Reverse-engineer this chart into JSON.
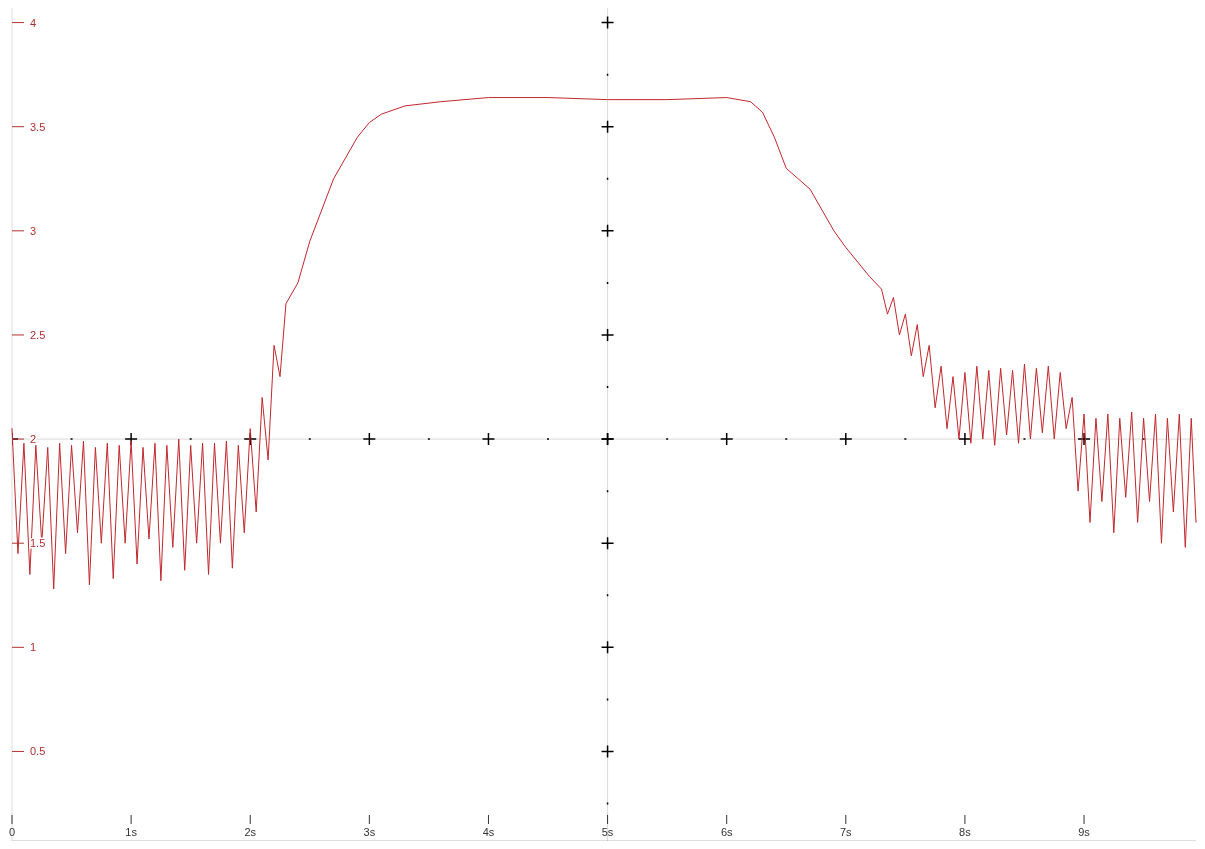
{
  "chart_data": {
    "type": "line",
    "xlim": [
      0,
      9.94
    ],
    "ylim": [
      0.07,
      4.07
    ],
    "xticks": [
      0,
      {
        "value": 1,
        "label": "1s"
      },
      {
        "value": 2,
        "label": "2s"
      },
      {
        "value": 3,
        "label": "3s"
      },
      {
        "value": 4,
        "label": "4s"
      },
      {
        "value": 5,
        "label": "5s"
      },
      {
        "value": 6,
        "label": "6s"
      },
      {
        "value": 7,
        "label": "7s"
      },
      {
        "value": 8,
        "label": "8s"
      },
      {
        "value": 9,
        "label": "9s"
      }
    ],
    "yticks": [
      0.5,
      1,
      1.5,
      2,
      2.5,
      3,
      3.5,
      4
    ],
    "grid": true,
    "series": [
      {
        "color": "#c0282d",
        "x": [
          0,
          0.05,
          0.1,
          0.15,
          0.2,
          0.25,
          0.3,
          0.35,
          0.4,
          0.45,
          0.5,
          0.55,
          0.6,
          0.65,
          0.7,
          0.75,
          0.8,
          0.85,
          0.9,
          0.95,
          1.0,
          1.05,
          1.1,
          1.15,
          1.2,
          1.25,
          1.3,
          1.35,
          1.4,
          1.45,
          1.5,
          1.55,
          1.6,
          1.65,
          1.7,
          1.75,
          1.8,
          1.85,
          1.9,
          1.95,
          2.0,
          2.05,
          2.1,
          2.15,
          2.2,
          2.25,
          2.3,
          2.4,
          2.5,
          2.6,
          2.7,
          2.8,
          2.9,
          3.0,
          3.1,
          3.3,
          3.6,
          4.0,
          4.5,
          5.0,
          5.5,
          6.0,
          6.2,
          6.3,
          6.4,
          6.5,
          6.6,
          6.7,
          6.8,
          6.9,
          7.0,
          7.1,
          7.2,
          7.3,
          7.35,
          7.4,
          7.45,
          7.5,
          7.55,
          7.6,
          7.65,
          7.7,
          7.75,
          7.8,
          7.85,
          7.9,
          7.95,
          8.0,
          8.05,
          8.1,
          8.15,
          8.2,
          8.25,
          8.3,
          8.35,
          8.4,
          8.45,
          8.5,
          8.55,
          8.6,
          8.65,
          8.7,
          8.75,
          8.8,
          8.85,
          8.9,
          8.95,
          9.0,
          9.05,
          9.1,
          9.15,
          9.2,
          9.25,
          9.3,
          9.35,
          9.4,
          9.45,
          9.5,
          9.55,
          9.6,
          9.65,
          9.7,
          9.75,
          9.8,
          9.85,
          9.9,
          9.94
        ],
        "values": [
          2.05,
          1.45,
          1.98,
          1.35,
          1.97,
          1.5,
          1.96,
          1.28,
          1.98,
          1.45,
          1.97,
          1.55,
          1.99,
          1.3,
          1.96,
          1.5,
          1.98,
          1.33,
          1.97,
          1.5,
          1.99,
          1.4,
          1.96,
          1.52,
          1.98,
          1.32,
          1.97,
          1.48,
          2.0,
          1.37,
          1.97,
          1.5,
          1.98,
          1.35,
          1.98,
          1.5,
          1.99,
          1.38,
          1.97,
          1.55,
          2.05,
          1.65,
          2.2,
          1.9,
          2.45,
          2.3,
          2.65,
          2.75,
          2.95,
          3.1,
          3.25,
          3.35,
          3.45,
          3.52,
          3.56,
          3.6,
          3.62,
          3.64,
          3.64,
          3.63,
          3.63,
          3.64,
          3.62,
          3.57,
          3.45,
          3.3,
          3.25,
          3.2,
          3.1,
          3.0,
          2.92,
          2.85,
          2.78,
          2.72,
          2.6,
          2.68,
          2.5,
          2.6,
          2.4,
          2.55,
          2.3,
          2.45,
          2.15,
          2.35,
          2.05,
          2.3,
          2.0,
          2.32,
          1.98,
          2.35,
          2.0,
          2.33,
          1.97,
          2.34,
          2.02,
          2.33,
          1.98,
          2.36,
          2.0,
          2.34,
          2.03,
          2.35,
          2.0,
          2.32,
          2.05,
          2.2,
          1.75,
          2.12,
          1.6,
          2.1,
          1.7,
          2.12,
          1.55,
          2.1,
          1.72,
          2.13,
          1.6,
          2.1,
          1.7,
          2.12,
          1.5,
          2.1,
          1.65,
          2.12,
          1.48,
          2.1,
          1.6
        ]
      }
    ]
  }
}
